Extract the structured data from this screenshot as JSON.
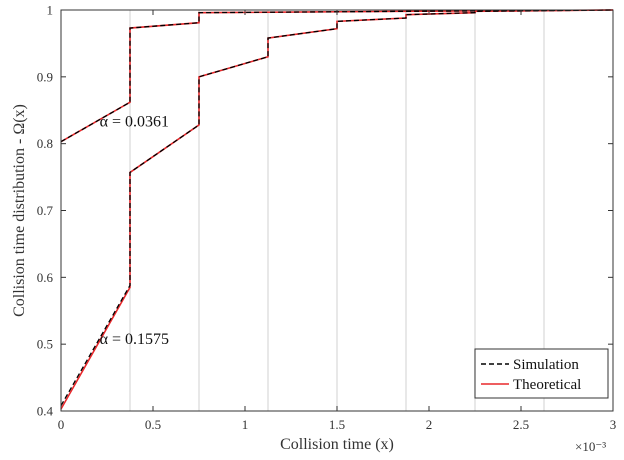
{
  "chart_data": {
    "type": "line",
    "xlabel": "Collision time (x)",
    "ylabel": "Collision time distribution - Ω(x)",
    "x_exponent_label": "×10⁻³",
    "xlim": [
      0,
      3
    ],
    "ylim": [
      0.4,
      1
    ],
    "x_ticks": [
      "0",
      "0.5",
      "1",
      "1.5",
      "2",
      "2.5",
      "3"
    ],
    "y_ticks": [
      "0.4",
      "0.5",
      "0.6",
      "0.7",
      "0.8",
      "0.9",
      "1"
    ],
    "grid": "vertical",
    "legend_position": "bottom-right",
    "colors": {
      "simulation": "#000000",
      "theoretical": "#e8282b",
      "grid": "#d9d9d9"
    },
    "series": [
      {
        "name": "Simulation",
        "style": "dashed",
        "curves": [
          {
            "x": [
              0,
              0.375,
              0.375,
              0.75,
              0.75,
              3
            ],
            "y": [
              0.803,
              0.862,
              0.973,
              0.981,
              0.996,
              1.0
            ]
          },
          {
            "x": [
              0,
              0.375,
              0.375,
              0.75,
              0.75,
              1.125,
              1.125,
              1.5,
              1.5,
              1.875,
              1.875,
              2.25,
              2.25,
              3
            ],
            "y": [
              0.408,
              0.588,
              0.757,
              0.828,
              0.9,
              0.93,
              0.958,
              0.972,
              0.983,
              0.988,
              0.993,
              0.996,
              0.998,
              1.0
            ]
          }
        ]
      },
      {
        "name": "Theoretical",
        "style": "solid",
        "curves": [
          {
            "x": [
              0,
              0.375,
              0.375,
              0.75,
              0.75,
              3
            ],
            "y": [
              0.803,
              0.862,
              0.973,
              0.981,
              0.996,
              1.0
            ]
          },
          {
            "x": [
              0,
              0.375,
              0.375,
              0.75,
              0.75,
              1.125,
              1.125,
              1.5,
              1.5,
              1.875,
              1.875,
              2.25,
              2.25,
              3
            ],
            "y": [
              0.403,
              0.585,
              0.757,
              0.828,
              0.9,
              0.93,
              0.958,
              0.972,
              0.983,
              0.988,
              0.993,
              0.996,
              0.998,
              1.0
            ]
          }
        ]
      }
    ],
    "annotations": [
      {
        "text": "α = 0.0361",
        "x": 0.21,
        "y": 0.826
      },
      {
        "text": "α = 0.1575",
        "x": 0.21,
        "y": 0.5
      }
    ]
  }
}
